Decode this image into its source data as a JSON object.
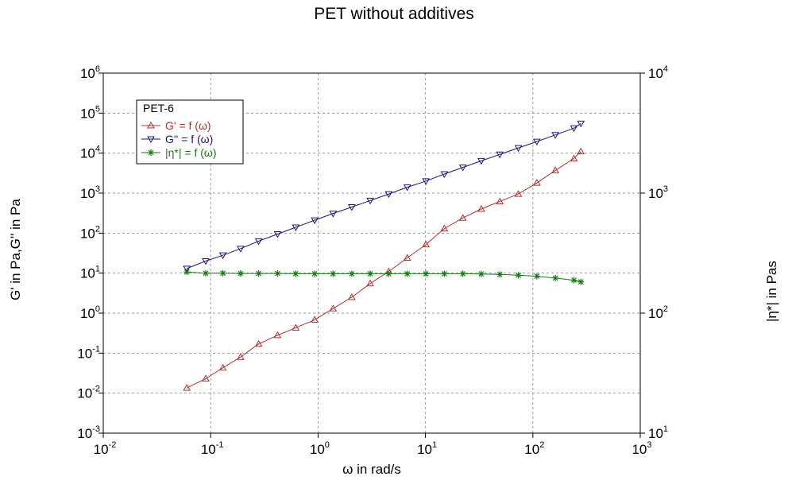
{
  "chart_data": {
    "type": "line",
    "title": "PET without additives",
    "xlabel": "ω in rad/s",
    "ylabel": "G' in Pa,G'' in Pa",
    "y2label": "|η*| in Pas",
    "x_scale": "log",
    "y_scale": "log",
    "y2_scale": "log",
    "xlim": [
      0.01,
      1000
    ],
    "ylim": [
      0.001,
      1000000
    ],
    "y2lim": [
      10,
      10000
    ],
    "grid": true,
    "legend_position": "top-left",
    "x_ticks": [
      {
        "base": "10",
        "exp": "-2"
      },
      {
        "base": "10",
        "exp": "-1"
      },
      {
        "base": "10",
        "exp": "0"
      },
      {
        "base": "10",
        "exp": "1"
      },
      {
        "base": "10",
        "exp": "2"
      },
      {
        "base": "10",
        "exp": "3"
      }
    ],
    "y_ticks": [
      {
        "base": "10",
        "exp": "-3"
      },
      {
        "base": "10",
        "exp": "-2"
      },
      {
        "base": "10",
        "exp": "-1"
      },
      {
        "base": "10",
        "exp": "0"
      },
      {
        "base": "10",
        "exp": "1"
      },
      {
        "base": "10",
        "exp": "2"
      },
      {
        "base": "10",
        "exp": "3"
      },
      {
        "base": "10",
        "exp": "4"
      },
      {
        "base": "10",
        "exp": "5"
      },
      {
        "base": "10",
        "exp": "6"
      }
    ],
    "y2_ticks": [
      {
        "base": "10",
        "exp": "1"
      },
      {
        "base": "10",
        "exp": "2"
      },
      {
        "base": "10",
        "exp": "3"
      },
      {
        "base": "10",
        "exp": "4"
      }
    ],
    "legend_title": "PET-6",
    "x": [
      0.06,
      0.09,
      0.13,
      0.19,
      0.28,
      0.42,
      0.62,
      0.93,
      1.38,
      2.06,
      3.06,
      4.55,
      6.77,
      10.1,
      15.0,
      22.3,
      33.1,
      49.3,
      73.3,
      109,
      162,
      241,
      280
    ],
    "series": [
      {
        "name": "G' = f (ω)",
        "axis": "left",
        "color": "#b03030",
        "marker": "triangle-up",
        "values": [
          0.0135,
          0.023,
          0.043,
          0.08,
          0.17,
          0.28,
          0.43,
          0.68,
          1.3,
          2.5,
          5.5,
          11,
          24,
          52,
          130,
          240,
          400,
          620,
          950,
          1800,
          3700,
          7300,
          11000
        ]
      },
      {
        "name": "G'' = f (ω)",
        "axis": "left",
        "color": "#1a1a7a",
        "marker": "triangle-down",
        "values": [
          13,
          20,
          28,
          41,
          63,
          95,
          140,
          210,
          310,
          450,
          650,
          950,
          1400,
          2000,
          3000,
          4400,
          6400,
          9300,
          13500,
          19500,
          28500,
          42000,
          55000
        ]
      },
      {
        "name": "|η*| = f (ω)",
        "axis": "right",
        "color": "#1a7a1a",
        "marker": "star",
        "values": [
          220,
          215,
          215,
          214,
          214,
          214,
          213,
          213,
          213,
          213,
          213,
          213,
          213,
          213,
          213,
          213,
          212,
          210,
          207,
          203,
          196,
          188,
          182
        ]
      }
    ]
  }
}
